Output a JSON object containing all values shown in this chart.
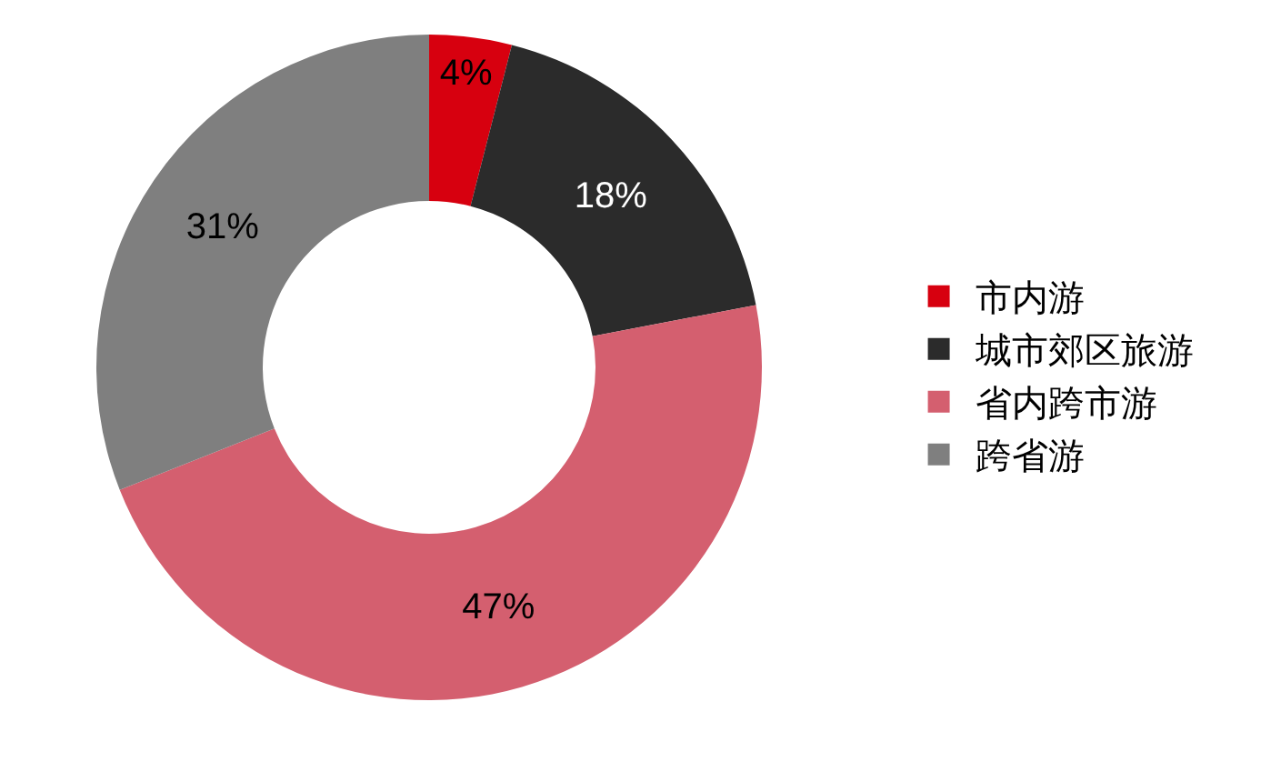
{
  "chart_data": {
    "type": "donut",
    "categories": [
      "市内游",
      "城市郊区旅游",
      "省内跨市游",
      "跨省游"
    ],
    "values": [
      4,
      18,
      47,
      31
    ],
    "colors": [
      "#d7000f",
      "#2b2b2b",
      "#d45f6f",
      "#7f7f7f"
    ],
    "value_labels": [
      "4%",
      "18%",
      "47%",
      "31%"
    ],
    "legend": "right"
  }
}
